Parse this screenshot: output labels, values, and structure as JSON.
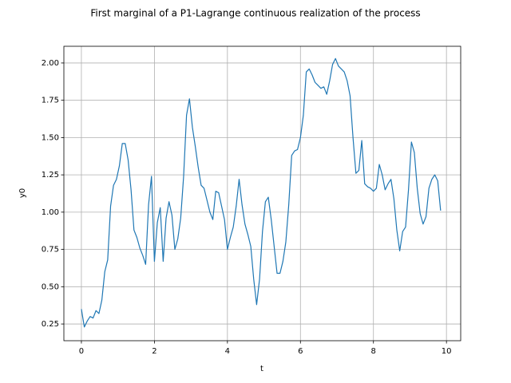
{
  "chart_data": {
    "type": "line",
    "title": "First marginal of a P1-Lagrange continuous realization of the process",
    "x_label": "t",
    "y_label": "y0",
    "x": [
      0,
      0.08,
      0.16,
      0.24,
      0.32,
      0.4,
      0.48,
      0.56,
      0.64,
      0.72,
      0.8,
      0.88,
      0.96,
      1.04,
      1.12,
      1.2,
      1.28,
      1.36,
      1.44,
      1.52,
      1.6,
      1.68,
      1.76,
      1.84,
      1.92,
      2,
      2.08,
      2.16,
      2.24,
      2.32,
      2.4,
      2.48,
      2.56,
      2.64,
      2.72,
      2.8,
      2.88,
      2.96,
      3.04,
      3.12,
      3.2,
      3.28,
      3.36,
      3.44,
      3.52,
      3.6,
      3.68,
      3.76,
      3.84,
      3.92,
      4,
      4.08,
      4.16,
      4.24,
      4.32,
      4.4,
      4.48,
      4.56,
      4.64,
      4.72,
      4.8,
      4.88,
      4.96,
      5.04,
      5.12,
      5.2,
      5.28,
      5.36,
      5.44,
      5.52,
      5.6,
      5.68,
      5.76,
      5.84,
      5.92,
      6,
      6.08,
      6.16,
      6.24,
      6.32,
      6.4,
      6.48,
      6.56,
      6.64,
      6.72,
      6.8,
      6.88,
      6.96,
      7.04,
      7.12,
      7.2,
      7.28,
      7.36,
      7.44,
      7.52,
      7.6,
      7.68,
      7.76,
      7.84,
      7.92,
      8,
      8.08,
      8.16,
      8.24,
      8.32,
      8.4,
      8.48,
      8.56,
      8.64,
      8.72,
      8.8,
      8.88,
      8.96,
      9.04,
      9.12,
      9.2,
      9.28,
      9.36,
      9.44,
      9.52,
      9.6,
      9.68,
      9.76,
      9.84
    ],
    "series": [
      {
        "name": "y0",
        "color": "#1f77b4",
        "values": [
          0.35,
          0.23,
          0.27,
          0.3,
          0.29,
          0.34,
          0.32,
          0.41,
          0.6,
          0.68,
          1.04,
          1.18,
          1.22,
          1.31,
          1.46,
          1.46,
          1.35,
          1.15,
          0.88,
          0.83,
          0.76,
          0.71,
          0.65,
          1.05,
          1.24,
          0.67,
          0.93,
          1.03,
          0.67,
          0.96,
          1.07,
          0.98,
          0.75,
          0.82,
          0.96,
          1.24,
          1.65,
          1.76,
          1.57,
          1.44,
          1.3,
          1.18,
          1.16,
          1.08,
          1.0,
          0.95,
          1.14,
          1.13,
          1.04,
          0.95,
          0.75,
          0.83,
          0.9,
          1.04,
          1.22,
          1.05,
          0.92,
          0.85,
          0.77,
          0.55,
          0.38,
          0.55,
          0.87,
          1.07,
          1.1,
          0.95,
          0.77,
          0.59,
          0.59,
          0.67,
          0.8,
          1.05,
          1.38,
          1.41,
          1.42,
          1.5,
          1.65,
          1.94,
          1.96,
          1.92,
          1.87,
          1.85,
          1.83,
          1.84,
          1.79,
          1.88,
          1.99,
          2.03,
          1.98,
          1.96,
          1.94,
          1.88,
          1.78,
          1.5,
          1.26,
          1.28,
          1.48,
          1.19,
          1.17,
          1.16,
          1.14,
          1.16,
          1.32,
          1.25,
          1.15,
          1.19,
          1.22,
          1.09,
          0.88,
          0.74,
          0.87,
          0.9,
          1.15,
          1.47,
          1.4,
          1.16,
          0.99,
          0.92,
          0.97,
          1.16,
          1.22,
          1.25,
          1.21,
          1.01
        ]
      }
    ],
    "xlim": [
      -0.48,
      10.39
    ],
    "ylim": [
      0.138,
      2.112
    ],
    "xticks": [
      0,
      2,
      4,
      6,
      8,
      10
    ],
    "yticks": [
      {
        "value": 0.25,
        "label": "0.25"
      },
      {
        "value": 0.5,
        "label": "0.50"
      },
      {
        "value": 0.75,
        "label": "0.75"
      },
      {
        "value": 1,
        "label": "1.00"
      },
      {
        "value": 1.25,
        "label": "1.25"
      },
      {
        "value": 1.5,
        "label": "1.50"
      },
      {
        "value": 1.75,
        "label": "1.75"
      },
      {
        "value": 2,
        "label": "2.00"
      }
    ],
    "grid": true
  }
}
